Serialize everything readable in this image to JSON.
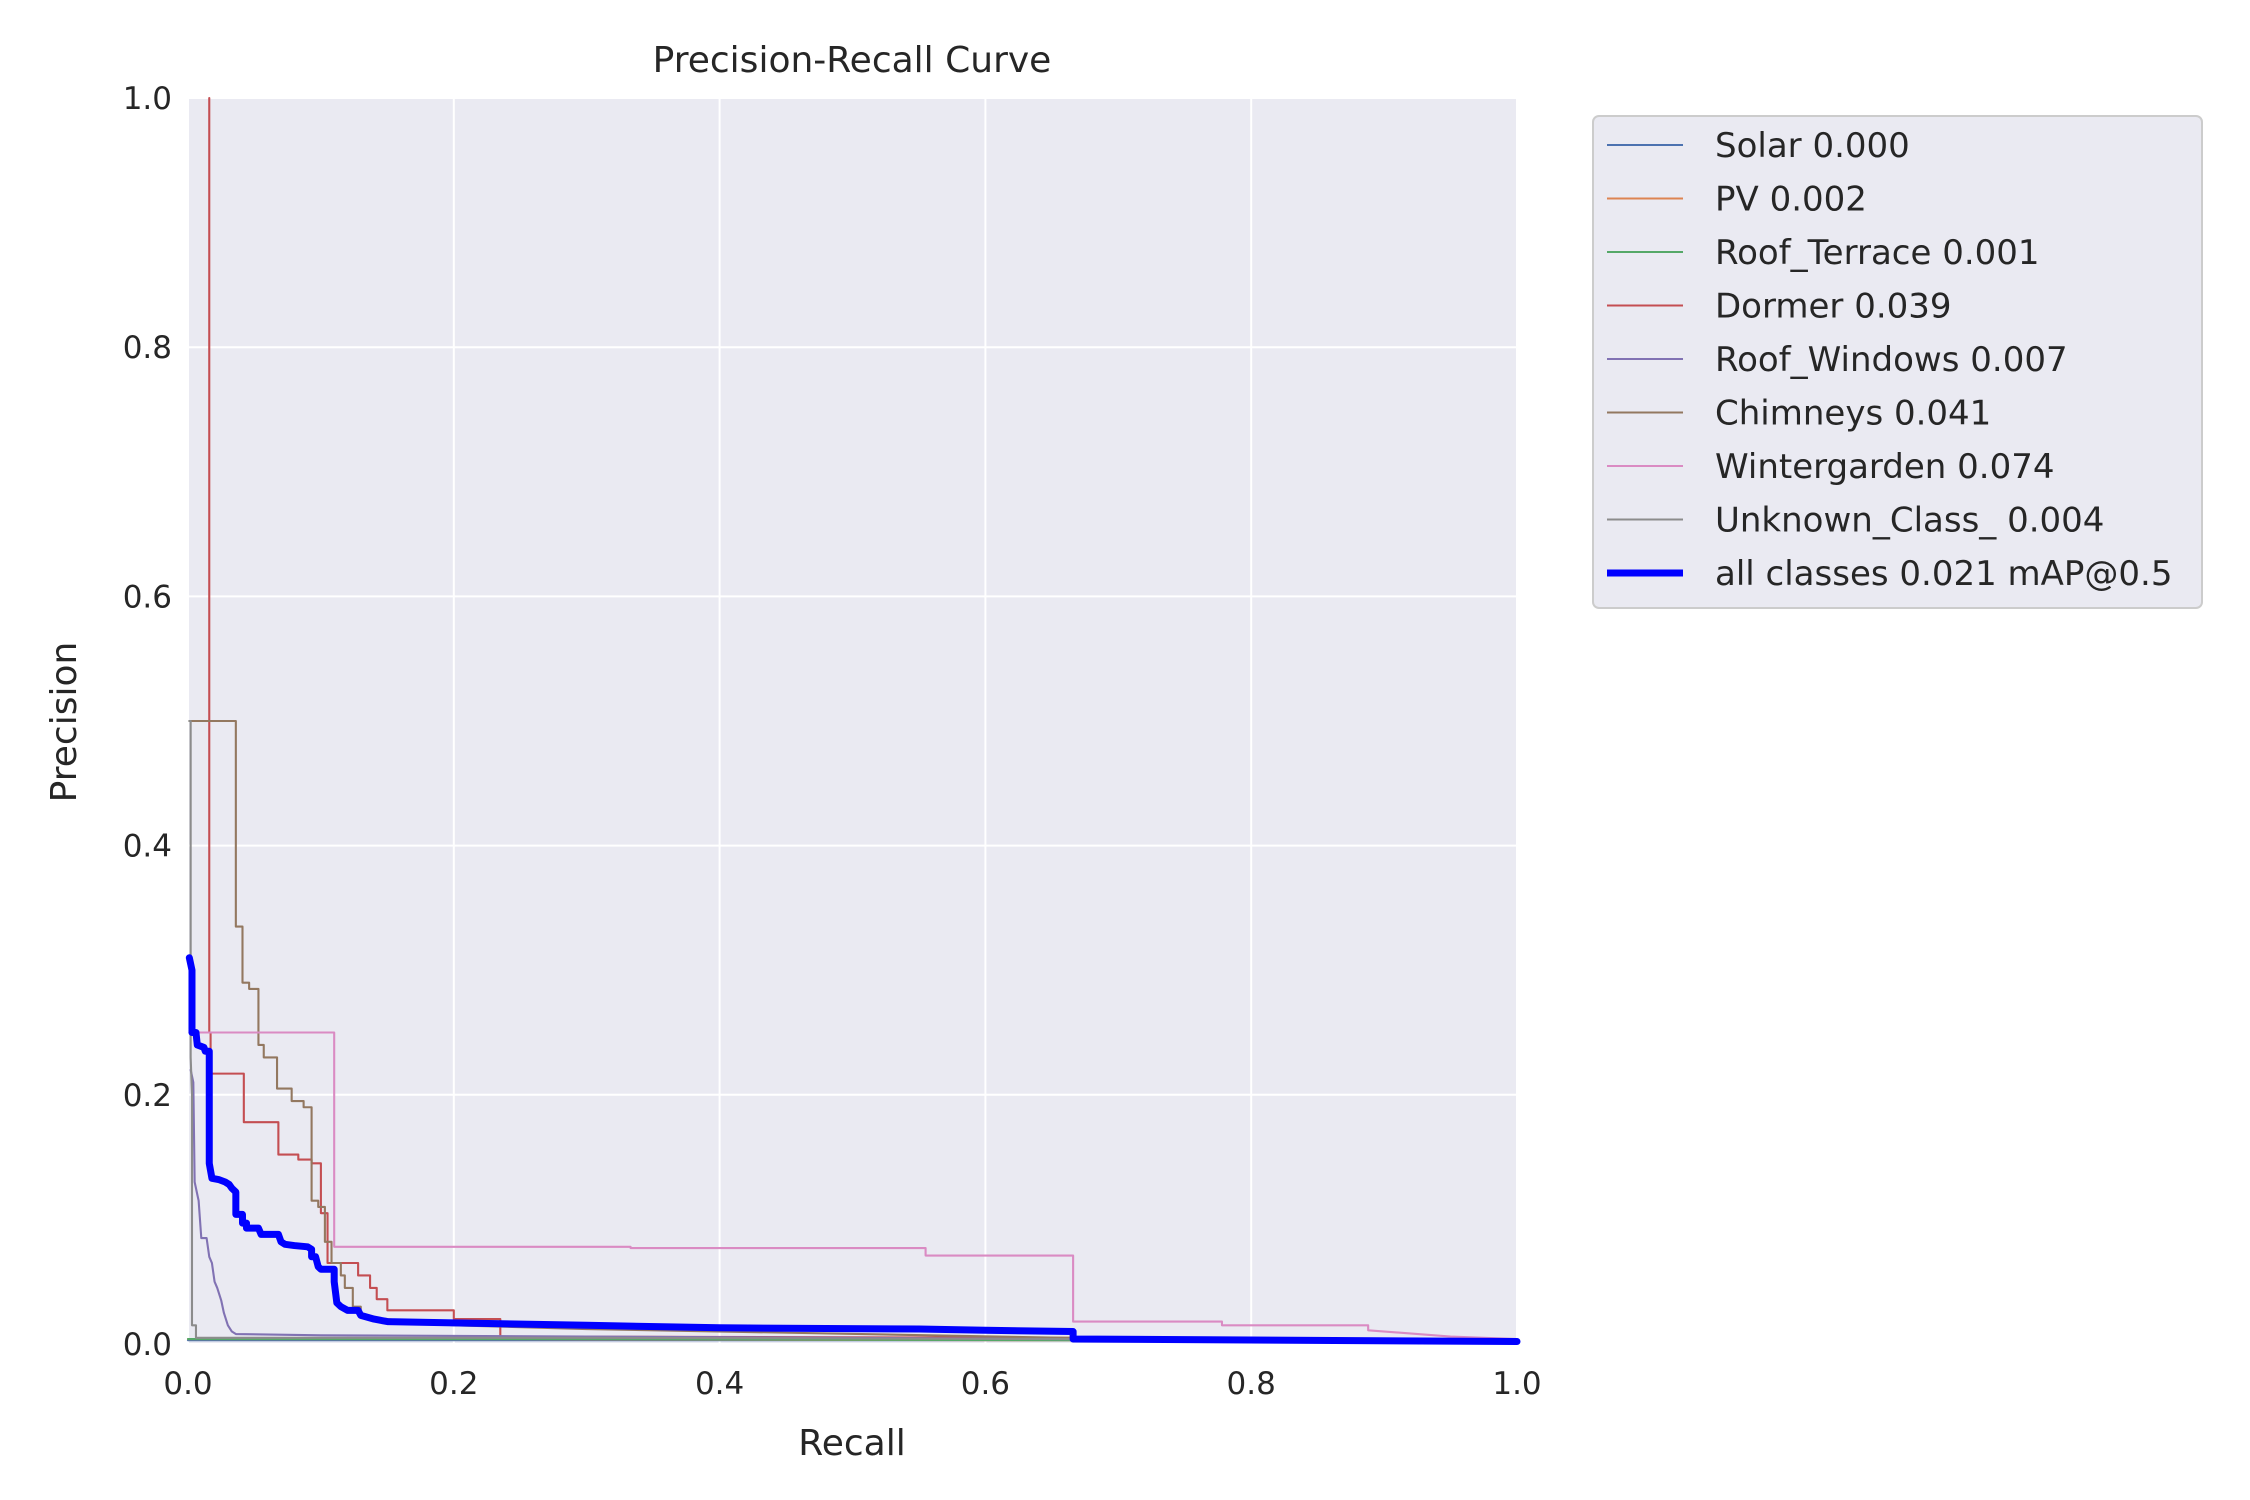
{
  "chart_data": {
    "type": "line",
    "title": "Precision-Recall Curve",
    "xlabel": "Recall",
    "ylabel": "Precision",
    "xlim": [
      0,
      1
    ],
    "ylim": [
      0,
      1
    ],
    "xticks": [
      "0.0",
      "0.2",
      "0.4",
      "0.6",
      "0.8",
      "1.0"
    ],
    "yticks": [
      "0.0",
      "0.2",
      "0.4",
      "0.6",
      "0.8",
      "1.0"
    ],
    "grid": true,
    "legend_position": "outside upper right",
    "background": "#EAEAF2",
    "series": [
      {
        "name": "Solar 0.000",
        "color": "#4C72B0",
        "width": 1.5,
        "points": [
          [
            0,
            0.003
          ],
          [
            1,
            0.003
          ]
        ]
      },
      {
        "name": "PV 0.002",
        "color": "#DD8452",
        "width": 1.5,
        "points": [
          [
            0,
            0.004
          ],
          [
            0.03,
            0.004
          ],
          [
            0.2,
            0.004
          ],
          [
            0.66,
            0.003
          ],
          [
            1,
            0.002
          ]
        ]
      },
      {
        "name": "Roof_Terrace 0.001",
        "color": "#55A868",
        "width": 1.5,
        "points": [
          [
            0,
            0.004
          ],
          [
            0.05,
            0.004
          ],
          [
            0.3,
            0.004
          ],
          [
            0.66,
            0.003
          ],
          [
            1,
            0.003
          ]
        ]
      },
      {
        "name": "Dormer 0.039",
        "color": "#C44E52",
        "width": 1.5,
        "points": [
          [
            0.016,
            1.0
          ],
          [
            0.016,
            0.25
          ],
          [
            0.017,
            0.25
          ],
          [
            0.017,
            0.217
          ],
          [
            0.042,
            0.217
          ],
          [
            0.042,
            0.178
          ],
          [
            0.068,
            0.178
          ],
          [
            0.068,
            0.152
          ],
          [
            0.083,
            0.152
          ],
          [
            0.083,
            0.148
          ],
          [
            0.093,
            0.148
          ],
          [
            0.093,
            0.145
          ],
          [
            0.1,
            0.145
          ],
          [
            0.1,
            0.105
          ],
          [
            0.105,
            0.105
          ],
          [
            0.105,
            0.065
          ],
          [
            0.128,
            0.065
          ],
          [
            0.128,
            0.055
          ],
          [
            0.137,
            0.055
          ],
          [
            0.137,
            0.045
          ],
          [
            0.142,
            0.045
          ],
          [
            0.142,
            0.036
          ],
          [
            0.15,
            0.036
          ],
          [
            0.15,
            0.027
          ],
          [
            0.2,
            0.027
          ],
          [
            0.2,
            0.02
          ],
          [
            0.235,
            0.02
          ],
          [
            0.235,
            0.006
          ],
          [
            0.66,
            0.005
          ],
          [
            1,
            0.003
          ]
        ]
      },
      {
        "name": "Roof_Windows 0.007",
        "color": "#8172B3",
        "width": 1.5,
        "points": [
          [
            0.002,
            0.22
          ],
          [
            0.004,
            0.21
          ],
          [
            0.005,
            0.13
          ],
          [
            0.007,
            0.12
          ],
          [
            0.008,
            0.115
          ],
          [
            0.01,
            0.085
          ],
          [
            0.014,
            0.085
          ],
          [
            0.016,
            0.07
          ],
          [
            0.018,
            0.065
          ],
          [
            0.02,
            0.05
          ],
          [
            0.022,
            0.045
          ],
          [
            0.025,
            0.035
          ],
          [
            0.027,
            0.025
          ],
          [
            0.03,
            0.015
          ],
          [
            0.033,
            0.01
          ],
          [
            0.036,
            0.008
          ],
          [
            0.1,
            0.007
          ],
          [
            0.3,
            0.006
          ],
          [
            0.66,
            0.004
          ],
          [
            1,
            0.003
          ]
        ]
      },
      {
        "name": "Chimneys 0.041",
        "color": "#937860",
        "width": 1.5,
        "points": [
          [
            0.001,
            0.5
          ],
          [
            0.036,
            0.5
          ],
          [
            0.036,
            0.335
          ],
          [
            0.041,
            0.335
          ],
          [
            0.041,
            0.29
          ],
          [
            0.046,
            0.29
          ],
          [
            0.046,
            0.285
          ],
          [
            0.053,
            0.285
          ],
          [
            0.053,
            0.24
          ],
          [
            0.057,
            0.24
          ],
          [
            0.057,
            0.23
          ],
          [
            0.067,
            0.23
          ],
          [
            0.067,
            0.205
          ],
          [
            0.078,
            0.205
          ],
          [
            0.078,
            0.195
          ],
          [
            0.087,
            0.195
          ],
          [
            0.087,
            0.19
          ],
          [
            0.093,
            0.19
          ],
          [
            0.093,
            0.115
          ],
          [
            0.098,
            0.115
          ],
          [
            0.098,
            0.11
          ],
          [
            0.103,
            0.11
          ],
          [
            0.103,
            0.082
          ],
          [
            0.108,
            0.082
          ],
          [
            0.108,
            0.065
          ],
          [
            0.115,
            0.065
          ],
          [
            0.115,
            0.055
          ],
          [
            0.118,
            0.055
          ],
          [
            0.118,
            0.045
          ],
          [
            0.124,
            0.045
          ],
          [
            0.124,
            0.03
          ],
          [
            0.13,
            0.03
          ],
          [
            0.13,
            0.022
          ],
          [
            0.2,
            0.015
          ],
          [
            0.3,
            0.012
          ],
          [
            0.66,
            0.005
          ],
          [
            1,
            0.003
          ]
        ]
      },
      {
        "name": "Wintergarden 0.074",
        "color": "#DA8BC3",
        "width": 1.5,
        "points": [
          [
            0.001,
            0.25
          ],
          [
            0.11,
            0.25
          ],
          [
            0.11,
            0.078
          ],
          [
            0.333,
            0.078
          ],
          [
            0.333,
            0.077
          ],
          [
            0.555,
            0.077
          ],
          [
            0.555,
            0.071
          ],
          [
            0.666,
            0.071
          ],
          [
            0.666,
            0.018
          ],
          [
            0.778,
            0.018
          ],
          [
            0.778,
            0.015
          ],
          [
            0.888,
            0.015
          ],
          [
            0.888,
            0.011
          ],
          [
            0.95,
            0.006
          ],
          [
            1,
            0.004
          ]
        ]
      },
      {
        "name": "Unknown_Class_ 0.004",
        "color": "#8C8C8C",
        "width": 1.5,
        "points": [
          [
            0.001,
            0.5
          ],
          [
            0.002,
            0.5
          ],
          [
            0.002,
            0.23
          ],
          [
            0.003,
            0.2
          ],
          [
            0.003,
            0.015
          ],
          [
            0.006,
            0.015
          ],
          [
            0.006,
            0.005
          ],
          [
            0.3,
            0.005
          ],
          [
            0.66,
            0.004
          ],
          [
            1,
            0.003
          ]
        ]
      },
      {
        "name": "all classes 0.021 mAP@0.5",
        "color": "#0000FF",
        "width": 5,
        "points": [
          [
            0.001,
            0.31
          ],
          [
            0.003,
            0.3
          ],
          [
            0.003,
            0.25
          ],
          [
            0.006,
            0.25
          ],
          [
            0.007,
            0.24
          ],
          [
            0.012,
            0.238
          ],
          [
            0.013,
            0.235
          ],
          [
            0.016,
            0.235
          ],
          [
            0.016,
            0.145
          ],
          [
            0.018,
            0.133
          ],
          [
            0.023,
            0.132
          ],
          [
            0.028,
            0.13
          ],
          [
            0.031,
            0.128
          ],
          [
            0.033,
            0.125
          ],
          [
            0.036,
            0.122
          ],
          [
            0.036,
            0.104
          ],
          [
            0.041,
            0.104
          ],
          [
            0.041,
            0.097
          ],
          [
            0.044,
            0.097
          ],
          [
            0.044,
            0.093
          ],
          [
            0.053,
            0.093
          ],
          [
            0.055,
            0.088
          ],
          [
            0.068,
            0.088
          ],
          [
            0.07,
            0.082
          ],
          [
            0.073,
            0.08
          ],
          [
            0.08,
            0.079
          ],
          [
            0.09,
            0.078
          ],
          [
            0.093,
            0.076
          ],
          [
            0.093,
            0.07
          ],
          [
            0.096,
            0.07
          ],
          [
            0.098,
            0.062
          ],
          [
            0.1,
            0.06
          ],
          [
            0.11,
            0.06
          ],
          [
            0.11,
            0.05
          ],
          [
            0.112,
            0.033
          ],
          [
            0.115,
            0.03
          ],
          [
            0.12,
            0.027
          ],
          [
            0.128,
            0.027
          ],
          [
            0.13,
            0.023
          ],
          [
            0.14,
            0.02
          ],
          [
            0.15,
            0.018
          ],
          [
            0.2,
            0.017
          ],
          [
            0.3,
            0.015
          ],
          [
            0.4,
            0.013
          ],
          [
            0.55,
            0.012
          ],
          [
            0.6,
            0.011
          ],
          [
            0.666,
            0.01
          ],
          [
            0.666,
            0.004
          ],
          [
            1,
            0.002
          ]
        ]
      }
    ]
  }
}
